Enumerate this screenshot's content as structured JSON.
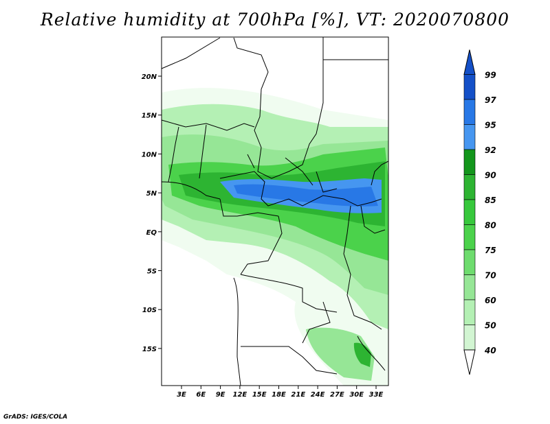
{
  "title": "Relative humidity at 700hPa [%], VT: 2020070800",
  "credit": "GrADS: IGES/COLA",
  "map": {
    "lat_ticks": [
      "20N",
      "15N",
      "10N",
      "5N",
      "EQ",
      "5S",
      "10S",
      "15S"
    ],
    "lon_ticks": [
      "3E",
      "6E",
      "9E",
      "12E",
      "15E",
      "18E",
      "21E",
      "24E",
      "27E",
      "30E",
      "33E"
    ]
  },
  "colorbar": {
    "labels": [
      "99",
      "97",
      "95",
      "92",
      "90",
      "85",
      "80",
      "75",
      "70",
      "60",
      "50",
      "40"
    ],
    "colors": [
      "#1450c8",
      "#2878e6",
      "#4696f0",
      "#13961c",
      "#2db432",
      "#37c83c",
      "#4bd24b",
      "#6edc6e",
      "#96e696",
      "#b4f0b4",
      "#d2f5d2",
      "#f0fcf0"
    ],
    "top_color": "#1450c8",
    "bottom_color": "#ffffff"
  }
}
